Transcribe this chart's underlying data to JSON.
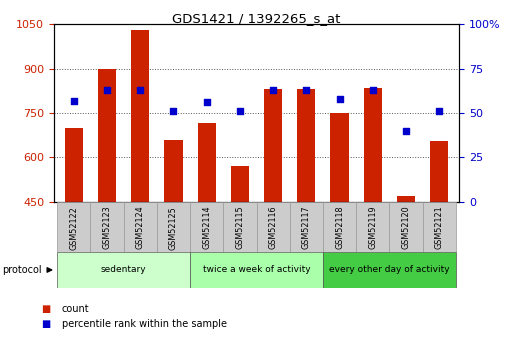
{
  "title": "GDS1421 / 1392265_s_at",
  "samples": [
    "GSM52122",
    "GSM52123",
    "GSM52124",
    "GSM52125",
    "GSM52114",
    "GSM52115",
    "GSM52116",
    "GSM52117",
    "GSM52118",
    "GSM52119",
    "GSM52120",
    "GSM52121"
  ],
  "counts": [
    700,
    900,
    1030,
    660,
    715,
    570,
    830,
    830,
    750,
    835,
    470,
    655
  ],
  "percentile_ranks": [
    57,
    63,
    63,
    51,
    56,
    51,
    63,
    63,
    58,
    63,
    40,
    51
  ],
  "ylim_left": [
    450,
    1050
  ],
  "ylim_right": [
    0,
    100
  ],
  "yticks_left": [
    450,
    600,
    750,
    900,
    1050
  ],
  "yticks_right": [
    0,
    25,
    50,
    75,
    100
  ],
  "bar_color": "#cc2200",
  "dot_color": "#0000cc",
  "grid_color": "#555555",
  "bg_color": "#ffffff",
  "group_defs": [
    {
      "start": 0,
      "end": 4,
      "label": "sedentary",
      "color": "#ccffcc"
    },
    {
      "start": 4,
      "end": 8,
      "label": "twice a week of activity",
      "color": "#aaffaa"
    },
    {
      "start": 8,
      "end": 12,
      "label": "every other day of activity",
      "color": "#44dd44"
    }
  ],
  "protocol_label": "protocol",
  "legend_count": "count",
  "legend_pct": "percentile rank within the sample",
  "tick_label_color_left": "#cc2200",
  "tick_label_color_right": "#0000cc",
  "sample_box_color": "#cccccc",
  "sample_box_edge": "#999999"
}
